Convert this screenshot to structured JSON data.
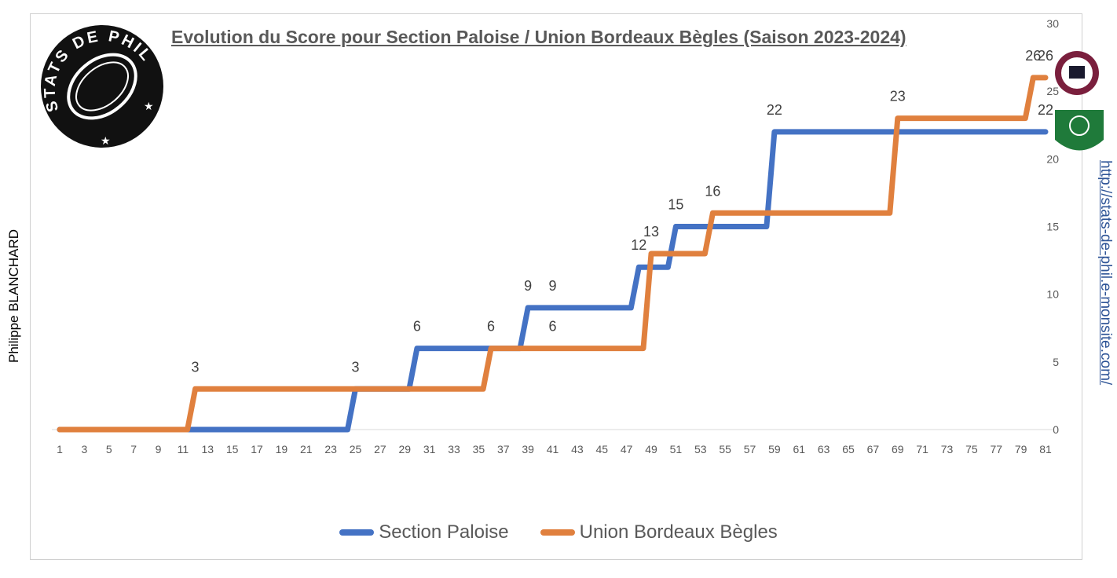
{
  "header": {
    "title": "Evolution du Score pour Section Paloise / Union Bordeaux Bègles (Saison 2023-2024)",
    "author": "Philippe BLANCHARD",
    "url": "http://stats-de-phil.e-monsite.com/",
    "logo_text": "STATS DE PHIL"
  },
  "colors": {
    "section_paloise": "#4472c4",
    "bordeaux": "#e0803e",
    "axis": "#d9d9d9"
  },
  "chart_data": {
    "type": "line",
    "title": "Evolution du Score pour Section Paloise / Union Bordeaux Bègles (Saison 2023-2024)",
    "xlabel": "",
    "ylabel": "",
    "x_ticks": [
      1,
      3,
      5,
      7,
      9,
      11,
      13,
      15,
      17,
      19,
      21,
      23,
      25,
      27,
      29,
      31,
      33,
      35,
      37,
      39,
      41,
      43,
      45,
      47,
      49,
      51,
      53,
      55,
      57,
      59,
      61,
      63,
      65,
      67,
      69,
      71,
      73,
      75,
      77,
      79,
      81
    ],
    "xlim": [
      1,
      81
    ],
    "y_ticks": [
      0,
      5,
      10,
      15,
      20,
      25,
      30
    ],
    "ylim": [
      0,
      30
    ],
    "y_axis_side": "right",
    "legend_position": "bottom",
    "series": [
      {
        "name": "Section Paloise",
        "color": "#4472c4",
        "steps": [
          [
            1,
            0
          ],
          [
            25,
            3
          ],
          [
            30,
            6
          ],
          [
            39,
            9
          ],
          [
            48,
            12
          ],
          [
            51,
            15
          ],
          [
            59,
            22
          ],
          [
            81,
            22
          ]
        ],
        "labels": [
          [
            25,
            3
          ],
          [
            30,
            6
          ],
          [
            39,
            9
          ],
          [
            41,
            9
          ],
          [
            48,
            12
          ],
          [
            51,
            15
          ],
          [
            59,
            22
          ],
          [
            81,
            22
          ]
        ]
      },
      {
        "name": "Union Bordeaux Bègles",
        "color": "#e0803e",
        "steps": [
          [
            1,
            0
          ],
          [
            12,
            3
          ],
          [
            36,
            6
          ],
          [
            49,
            13
          ],
          [
            54,
            16
          ],
          [
            69,
            23
          ],
          [
            80,
            26
          ],
          [
            81,
            26
          ]
        ],
        "labels": [
          [
            12,
            3
          ],
          [
            36,
            6
          ],
          [
            41,
            6
          ],
          [
            49,
            13
          ],
          [
            54,
            16
          ],
          [
            69,
            23
          ],
          [
            80,
            26
          ],
          [
            81,
            26
          ]
        ]
      }
    ]
  }
}
